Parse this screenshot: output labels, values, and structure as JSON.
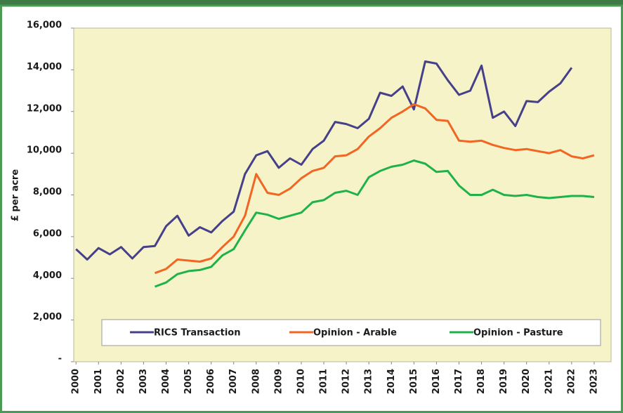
{
  "chart_data": {
    "type": "line",
    "y_label": "£ per acre",
    "x": [
      2000,
      2000.5,
      2001,
      2001.5,
      2002,
      2002.5,
      2003,
      2003.5,
      2004,
      2004.5,
      2005,
      2005.5,
      2006,
      2006.5,
      2007,
      2007.5,
      2008,
      2008.5,
      2009,
      2009.5,
      2010,
      2010.5,
      2011,
      2011.5,
      2012,
      2012.5,
      2013,
      2013.5,
      2014,
      2014.5,
      2015,
      2015.5,
      2016,
      2016.5,
      2017,
      2017.5,
      2018,
      2018.5,
      2019,
      2019.5,
      2020,
      2020.5,
      2021,
      2021.5,
      2022,
      2022.5,
      2023
    ],
    "series": [
      {
        "name": "RICS Transaction",
        "color": "#46408a",
        "values": [
          5400,
          4900,
          5450,
          5150,
          5500,
          4950,
          5500,
          5550,
          6500,
          7000,
          6050,
          6450,
          6200,
          6750,
          7200,
          9000,
          9900,
          10100,
          9300,
          9750,
          9450,
          10200,
          10600,
          11500,
          11400,
          11200,
          11650,
          12900,
          12750,
          13200,
          12100,
          14400,
          14300,
          13500,
          12800,
          13000,
          14200,
          11700,
          12000,
          11300,
          12500,
          12450,
          12950,
          13350,
          14100,
          null,
          null
        ]
      },
      {
        "name": "Opinion - Arable",
        "color": "#f26522",
        "values": [
          null,
          null,
          null,
          null,
          null,
          null,
          null,
          4250,
          4450,
          4900,
          4850,
          4800,
          4950,
          5500,
          6000,
          7000,
          9000,
          8100,
          8000,
          8300,
          8800,
          9150,
          9300,
          9850,
          9900,
          10200,
          10800,
          11200,
          11700,
          12000,
          12350,
          12150,
          11600,
          11550,
          10600,
          10550,
          10600,
          10400,
          10250,
          10150,
          10200,
          10100,
          10000,
          10150,
          9850,
          9750,
          9900
        ]
      },
      {
        "name": "Opinion - Pasture",
        "color": "#1fb24a",
        "values": [
          null,
          null,
          null,
          null,
          null,
          null,
          null,
          3600,
          3800,
          4200,
          4350,
          4400,
          4550,
          5100,
          5400,
          6300,
          7150,
          7050,
          6850,
          7000,
          7150,
          7650,
          7750,
          8100,
          8200,
          8000,
          8850,
          9150,
          9350,
          9450,
          9650,
          9500,
          9100,
          9150,
          8450,
          8000,
          8000,
          8250,
          8000,
          7950,
          8000,
          7900,
          7850,
          7900,
          7950,
          7950,
          7900
        ]
      }
    ],
    "xlim": [
      1999.9,
      2023.75
    ],
    "xticks": [
      2000,
      2001,
      2002,
      2003,
      2004,
      2005,
      2006,
      2007,
      2008,
      2009,
      2010,
      2011,
      2012,
      2013,
      2014,
      2015,
      2016,
      2017,
      2018,
      2019,
      2020,
      2021,
      2022,
      2023
    ],
    "ylim": [
      0,
      16000
    ],
    "yticks": [
      {
        "value": 0,
        "label": "-"
      },
      {
        "value": 2000,
        "label": "2,000"
      },
      {
        "value": 4000,
        "label": "4,000"
      },
      {
        "value": 6000,
        "label": "6,000"
      },
      {
        "value": 8000,
        "label": "8,000"
      },
      {
        "value": 10000,
        "label": "10,000"
      },
      {
        "value": 12000,
        "label": "12,000"
      },
      {
        "value": 14000,
        "label": "14,000"
      },
      {
        "value": 16000,
        "label": "16,000"
      }
    ],
    "legend": "bottom"
  }
}
